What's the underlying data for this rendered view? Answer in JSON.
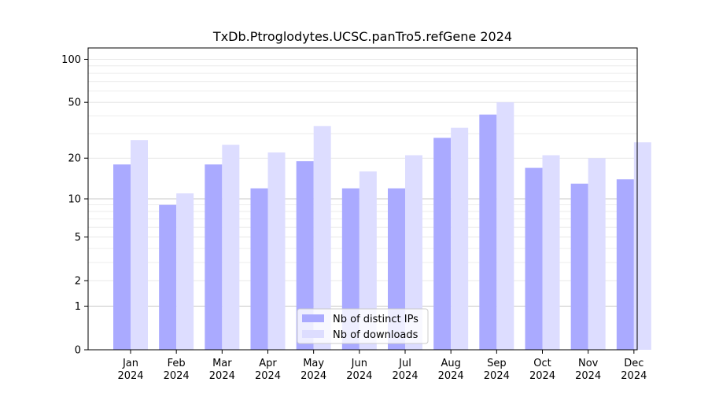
{
  "chart_data": {
    "type": "bar",
    "title": "TxDb.Ptroglodytes.UCSC.panTro5.refGene 2024",
    "xlabel": "",
    "ylabel": "",
    "categories": [
      [
        "Jan",
        "2024"
      ],
      [
        "Feb",
        "2024"
      ],
      [
        "Mar",
        "2024"
      ],
      [
        "Apr",
        "2024"
      ],
      [
        "May",
        "2024"
      ],
      [
        "Jun",
        "2024"
      ],
      [
        "Jul",
        "2024"
      ],
      [
        "Aug",
        "2024"
      ],
      [
        "Sep",
        "2024"
      ],
      [
        "Oct",
        "2024"
      ],
      [
        "Nov",
        "2024"
      ],
      [
        "Dec",
        "2024"
      ]
    ],
    "series": [
      {
        "name": "Nb of distinct IPs",
        "color": "#aaaaff",
        "values": [
          18,
          9,
          18,
          12,
          19,
          12,
          12,
          28,
          41,
          17,
          13,
          14
        ]
      },
      {
        "name": "Nb of downloads",
        "color": "#ddddff",
        "values": [
          27,
          11,
          25,
          22,
          34,
          16,
          21,
          33,
          50,
          21,
          20,
          26
        ]
      }
    ],
    "y_scale": "symlog",
    "yticks": [
      0,
      1,
      2,
      5,
      10,
      20,
      50,
      100
    ],
    "ylim": [
      0,
      120
    ],
    "grid": "horizontal",
    "legend_placement": "lower-center"
  }
}
